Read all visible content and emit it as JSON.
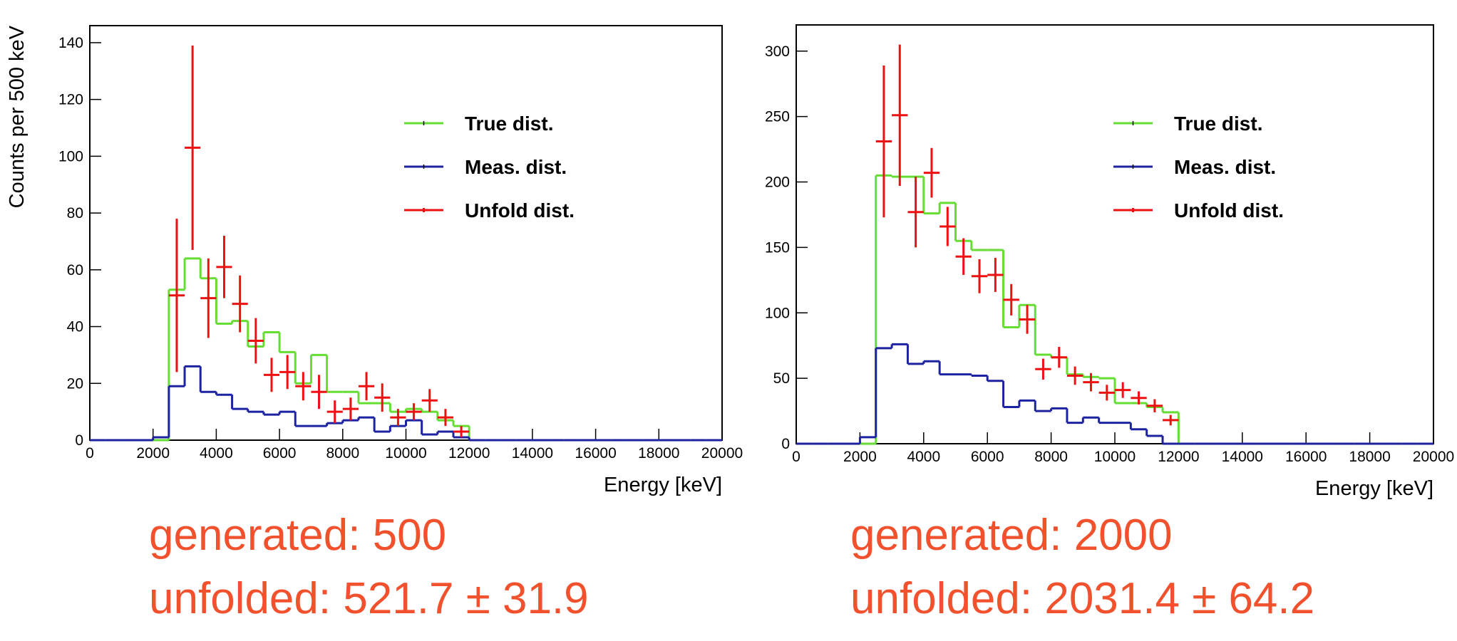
{
  "chart_data": [
    {
      "type": "histogram",
      "ylabel": "Counts per 500 keV",
      "xlabel": "Energy [keV]",
      "bins": [
        0,
        500,
        1000,
        1500,
        2000,
        2500,
        3000,
        3500,
        4000,
        4500,
        5000,
        5500,
        6000,
        6500,
        7000,
        7500,
        8000,
        8500,
        9000,
        9500,
        10000,
        10500,
        11000,
        11500,
        12000,
        12500,
        13000,
        13500,
        14000,
        14500,
        15000,
        15500,
        16000,
        16500,
        17000,
        17500,
        18000,
        18500,
        19000,
        19500,
        20000
      ],
      "xlim": [
        0,
        20000
      ],
      "xticks": [
        0,
        2000,
        4000,
        6000,
        8000,
        10000,
        12000,
        14000,
        16000,
        18000,
        20000
      ],
      "ylim": [
        0,
        146
      ],
      "yticks": [
        0,
        20,
        40,
        60,
        80,
        100,
        120,
        140
      ],
      "legend": "top",
      "series": [
        {
          "name": "True dist.",
          "color": "#66dd33",
          "values": [
            0,
            0,
            0,
            0,
            0,
            53,
            64,
            57,
            41,
            42,
            33,
            38,
            31,
            20,
            30,
            17,
            17,
            13,
            13,
            10,
            11,
            10,
            7,
            5,
            0,
            0,
            0,
            0,
            0,
            0,
            0,
            0,
            0,
            0,
            0,
            0,
            0,
            0,
            0,
            0
          ]
        },
        {
          "name": "Meas. dist.",
          "color": "#1c22a0",
          "values": [
            0,
            0,
            0,
            0,
            1,
            19,
            26,
            17,
            16,
            11,
            10,
            9,
            10,
            5,
            5,
            6,
            7,
            8,
            3,
            5,
            7,
            2,
            3,
            1,
            0,
            0,
            0,
            0,
            0,
            0,
            0,
            0,
            0,
            0,
            0,
            0,
            0,
            0,
            0,
            0
          ]
        },
        {
          "name": "Unfold dist.",
          "color": "#ee1111",
          "x": [
            2750,
            3250,
            3750,
            4250,
            4750,
            5250,
            5750,
            6250,
            6750,
            7250,
            7750,
            8250,
            8750,
            9250,
            9750,
            10250,
            10750,
            11250,
            11750
          ],
          "values": [
            51,
            103,
            50,
            61,
            48,
            35,
            23,
            24,
            19,
            17,
            10,
            11,
            19,
            15,
            8,
            10,
            14,
            8,
            3
          ],
          "errors": [
            27,
            36,
            14,
            11,
            10,
            8,
            6,
            6,
            5,
            6,
            4,
            4,
            5,
            5,
            3,
            3,
            4,
            3,
            2
          ]
        }
      ],
      "annotations": [
        "generated: 500",
        "unfolded: 521.7 ± 31.9"
      ]
    },
    {
      "type": "histogram",
      "xlabel": "Energy [keV]",
      "bins": [
        0,
        500,
        1000,
        1500,
        2000,
        2500,
        3000,
        3500,
        4000,
        4500,
        5000,
        5500,
        6000,
        6500,
        7000,
        7500,
        8000,
        8500,
        9000,
        9500,
        10000,
        10500,
        11000,
        11500,
        12000,
        12500,
        13000,
        13500,
        14000,
        14500,
        15000,
        15500,
        16000,
        16500,
        17000,
        17500,
        18000,
        18500,
        19000,
        19500,
        20000
      ],
      "xlim": [
        0,
        20000
      ],
      "xticks": [
        0,
        2000,
        4000,
        6000,
        8000,
        10000,
        12000,
        14000,
        16000,
        18000,
        20000
      ],
      "ylim": [
        0,
        320
      ],
      "yticks": [
        0,
        50,
        100,
        150,
        200,
        250,
        300
      ],
      "legend": "top",
      "series": [
        {
          "name": "True dist.",
          "color": "#66dd33",
          "values": [
            0,
            0,
            0,
            0,
            0,
            205,
            204,
            204,
            176,
            184,
            155,
            148,
            148,
            89,
            106,
            68,
            66,
            53,
            51,
            50,
            31,
            31,
            28,
            24,
            0,
            0,
            0,
            0,
            0,
            0,
            0,
            0,
            0,
            0,
            0,
            0,
            0,
            0,
            0,
            0
          ]
        },
        {
          "name": "Meas. dist.",
          "color": "#1c22a0",
          "values": [
            0,
            0,
            0,
            0,
            5,
            73,
            76,
            61,
            63,
            53,
            53,
            52,
            48,
            28,
            33,
            25,
            27,
            16,
            20,
            16,
            16,
            11,
            6,
            0,
            0,
            0,
            0,
            0,
            0,
            0,
            0,
            0,
            0,
            0,
            0,
            0,
            0,
            0,
            0,
            0
          ]
        },
        {
          "name": "Unfold dist.",
          "color": "#ee1111",
          "x": [
            2750,
            3250,
            3750,
            4250,
            4750,
            5250,
            5750,
            6250,
            6750,
            7250,
            7750,
            8250,
            8750,
            9250,
            9750,
            10250,
            10750,
            11250,
            11750
          ],
          "values": [
            231,
            251,
            177,
            207,
            166,
            143,
            128,
            129,
            110,
            95,
            57,
            66,
            52,
            47,
            39,
            41,
            35,
            29,
            18
          ],
          "errors": [
            58,
            54,
            27,
            19,
            15,
            14,
            13,
            13,
            12,
            11,
            8,
            8,
            7,
            7,
            6,
            6,
            5,
            5,
            4
          ]
        }
      ],
      "annotations": [
        "generated: 2000",
        "unfolded: 2031.4 ± 64.2"
      ]
    }
  ]
}
